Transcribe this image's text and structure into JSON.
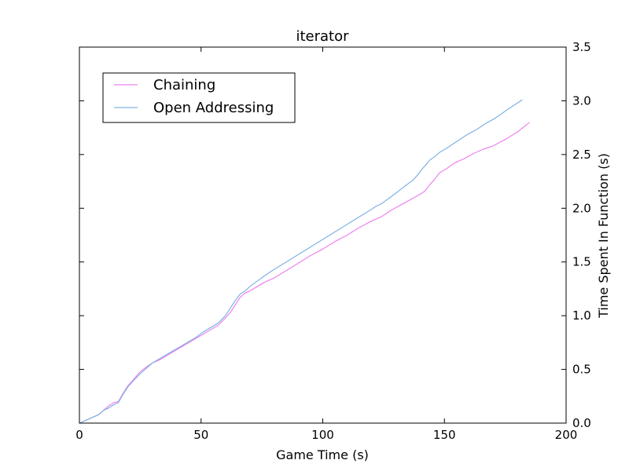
{
  "chart_data": {
    "type": "line",
    "title": "iterator",
    "xlabel": "Game Time (s)",
    "ylabel": "Time Spent In Function (s)",
    "xlim": [
      0,
      200
    ],
    "ylim": [
      0,
      3.5
    ],
    "x_ticks": [
      "0",
      "50",
      "100",
      "150",
      "200"
    ],
    "y_ticks": [
      "0.0",
      "0.5",
      "1.0",
      "1.5",
      "2.0",
      "2.5",
      "3.0",
      "3.5"
    ],
    "y_axis_side": "right",
    "grid": false,
    "legend_position": "upper-left",
    "series": [
      {
        "name": "Chaining",
        "color": "#ee82ee",
        "x": [
          0,
          2,
          5,
          8,
          10,
          12,
          14,
          16,
          18,
          20,
          22,
          25,
          28,
          30,
          33,
          36,
          39,
          42,
          45,
          48,
          51,
          54,
          57,
          60,
          62,
          64,
          66,
          68,
          70,
          73,
          76,
          80,
          85,
          90,
          95,
          100,
          105,
          110,
          115,
          120,
          124,
          128,
          132,
          136,
          140,
          142,
          144,
          146,
          148,
          151,
          154,
          158,
          162,
          166,
          170,
          175,
          180,
          185
        ],
        "y": [
          0.0,
          0.02,
          0.05,
          0.08,
          0.12,
          0.16,
          0.19,
          0.2,
          0.28,
          0.35,
          0.4,
          0.48,
          0.53,
          0.56,
          0.59,
          0.63,
          0.67,
          0.71,
          0.75,
          0.79,
          0.83,
          0.87,
          0.91,
          0.98,
          1.03,
          1.1,
          1.17,
          1.21,
          1.23,
          1.27,
          1.31,
          1.35,
          1.42,
          1.49,
          1.56,
          1.62,
          1.69,
          1.75,
          1.82,
          1.88,
          1.92,
          1.98,
          2.03,
          2.08,
          2.13,
          2.16,
          2.22,
          2.27,
          2.33,
          2.37,
          2.42,
          2.46,
          2.51,
          2.55,
          2.58,
          2.64,
          2.71,
          2.8
        ]
      },
      {
        "name": "Open Addressing",
        "color": "#7fb2e5",
        "x": [
          0,
          2,
          5,
          8,
          10,
          12,
          14,
          16,
          18,
          20,
          22,
          25,
          28,
          30,
          33,
          36,
          39,
          42,
          45,
          48,
          51,
          54,
          57,
          60,
          62,
          64,
          66,
          68,
          70,
          73,
          76,
          80,
          85,
          90,
          95,
          100,
          105,
          110,
          115,
          120,
          122,
          124,
          127,
          130,
          134,
          137,
          139,
          141,
          143,
          144,
          146,
          148,
          151,
          155,
          159,
          163,
          167,
          171,
          176,
          182
        ],
        "y": [
          0.0,
          0.02,
          0.05,
          0.08,
          0.12,
          0.14,
          0.17,
          0.19,
          0.27,
          0.34,
          0.39,
          0.46,
          0.52,
          0.56,
          0.6,
          0.64,
          0.68,
          0.72,
          0.76,
          0.8,
          0.85,
          0.89,
          0.93,
          1.0,
          1.07,
          1.14,
          1.2,
          1.23,
          1.27,
          1.32,
          1.37,
          1.43,
          1.5,
          1.57,
          1.64,
          1.71,
          1.78,
          1.85,
          1.92,
          1.99,
          2.02,
          2.04,
          2.09,
          2.14,
          2.21,
          2.26,
          2.31,
          2.37,
          2.42,
          2.45,
          2.48,
          2.52,
          2.56,
          2.62,
          2.68,
          2.73,
          2.79,
          2.84,
          2.92,
          3.01
        ]
      }
    ]
  }
}
